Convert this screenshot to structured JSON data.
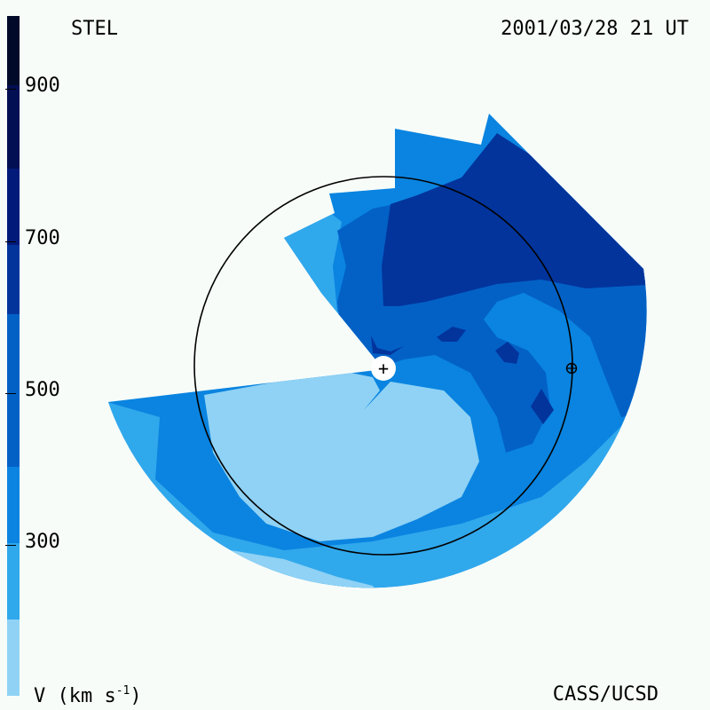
{
  "header": {
    "observatory": "STEL",
    "datetime": "2001/03/28 21 UT"
  },
  "footer": {
    "credit": "CASS/UCSD",
    "units_base": "V (km s",
    "units_exp": "-1",
    "units_close": ")"
  },
  "colorbar": {
    "tick_labels": [
      "900",
      "700",
      "500",
      "300"
    ],
    "bands": [
      {
        "range": [
          200,
          300
        ],
        "color": "#8fd2f5"
      },
      {
        "range": [
          300,
          400
        ],
        "color": "#30a8ec"
      },
      {
        "range": [
          400,
          500
        ],
        "color": "#0a84e0"
      },
      {
        "range": [
          500,
          600
        ],
        "color": "#0361c6"
      },
      {
        "range": [
          600,
          700
        ],
        "color": "#02349c"
      },
      {
        "range": [
          700,
          800
        ],
        "color": "#021a7a"
      },
      {
        "range": [
          800,
          900
        ],
        "color": "#020f52"
      },
      {
        "range": [
          900,
          1000
        ],
        "color": "#010a28"
      }
    ]
  },
  "markers": {
    "sun": "+",
    "earth": "earth-symbol"
  },
  "colors": {
    "background": "#f7fcf9",
    "orbit": "#000000"
  }
}
